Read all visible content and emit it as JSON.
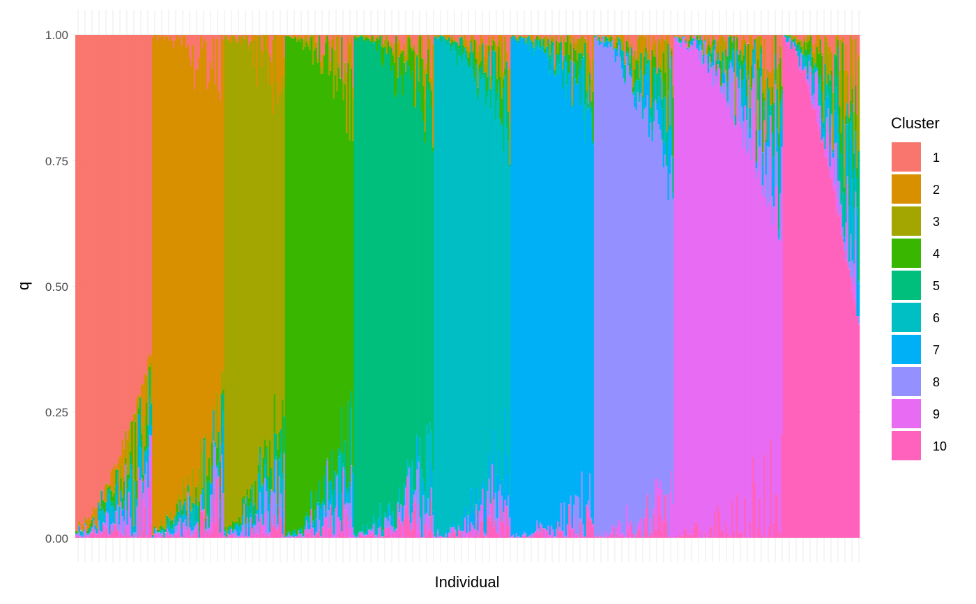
{
  "chart_data": {
    "type": "bar",
    "stacked": true,
    "title": "",
    "xlabel": "Individual",
    "ylabel": "q",
    "ylim": [
      0,
      1
    ],
    "y_ticks": [
      "0.00",
      "0.25",
      "0.50",
      "0.75",
      "1.00"
    ],
    "x_tick_labels_shown": false,
    "grid": "major gridlines, light grey",
    "legend": {
      "title": "Cluster",
      "position": "right",
      "entries": [
        "1",
        "2",
        "3",
        "4",
        "5",
        "6",
        "7",
        "8",
        "9",
        "10"
      ]
    },
    "colors": {
      "1": "#F8766D",
      "2": "#D89000",
      "3": "#A3A500",
      "4": "#39B600",
      "5": "#00BF7D",
      "6": "#00BFC4",
      "7": "#00B0F6",
      "8": "#9590FF",
      "9": "#E76BF3",
      "10": "#FF62BC"
    },
    "series": [
      {
        "name": "1",
        "individuals": 48,
        "assigned_q_range": [
          0.63,
          0.98
        ]
      },
      {
        "name": "2",
        "individuals": 45,
        "assigned_q_range": [
          0.65,
          0.98
        ]
      },
      {
        "name": "3",
        "individuals": 38,
        "assigned_q_range": [
          0.64,
          0.98
        ]
      },
      {
        "name": "4",
        "individuals": 43,
        "assigned_q_range": [
          0.64,
          0.99
        ]
      },
      {
        "name": "5",
        "individuals": 50,
        "assigned_q_range": [
          0.64,
          0.99
        ]
      },
      {
        "name": "6",
        "individuals": 48,
        "assigned_q_range": [
          0.64,
          0.99
        ]
      },
      {
        "name": "7",
        "individuals": 52,
        "assigned_q_range": [
          0.76,
          0.99
        ]
      },
      {
        "name": "8",
        "individuals": 50,
        "assigned_q_range": [
          0.62,
          0.99
        ]
      },
      {
        "name": "9",
        "individuals": 68,
        "assigned_q_range": [
          0.57,
          0.99
        ]
      },
      {
        "name": "10",
        "individuals": 48,
        "assigned_q_range": [
          0.41,
          0.99
        ]
      }
    ],
    "n_individuals": 490
  }
}
